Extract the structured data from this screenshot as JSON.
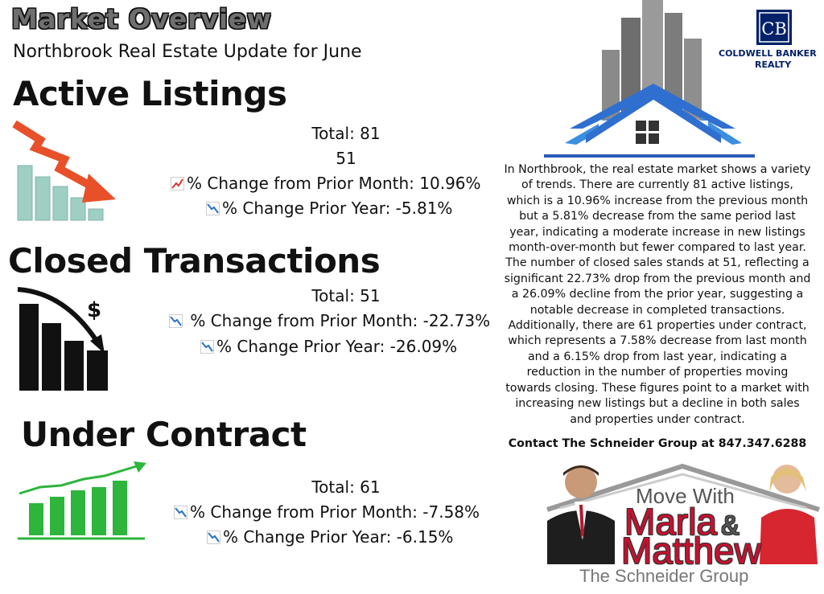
{
  "header": {
    "title": "Market Overview",
    "subtitle": "Northbrook Real Estate Update for June"
  },
  "active_listings": {
    "heading": "Active Listings",
    "total": "Total: 81",
    "extra": "51",
    "month_change": "% Change from Prior Month: 10.96%",
    "year_change": "% Change Prior Year: -5.81%",
    "month_trend_icon": "chart-increasing-icon",
    "year_trend_icon": "chart-decreasing-icon"
  },
  "closed_transactions": {
    "heading": "Closed Transactions",
    "total": "Total: 51",
    "month_change": " % Change from Prior Month: -22.73%",
    "year_change": "% Change Prior Year: -26.09%",
    "dollar_symbol": "$"
  },
  "under_contract": {
    "heading": "Under Contract",
    "total": "Total: 61",
    "month_change": "% Change from Prior Month: -7.58%",
    "year_change": "% Change Prior Year: -6.15%"
  },
  "summary": {
    "paragraph": "In Northbrook, the real estate market shows a variety of trends. There are currently 81 active listings, which is a 10.96% increase from the previous month but a 5.81% decrease from the same period last year, indicating a moderate increase in new listings month-over-month but fewer compared to last year. The number of closed sales stands at 51, reflecting a significant 22.73% drop from the previous month and a 26.09% decline from the prior year, suggesting a notable decrease in completed transactions. Additionally, there are 61 properties under contract, which represents a 7.58% decrease from last month and a 6.15% drop from last year, indicating a reduction in the number of properties moving towards closing. These figures point to a market with increasing new listings but a decline in both sales and properties under contract.",
    "contact": "Contact The Schneider Group at 847.347.6288"
  },
  "brand": {
    "logo_letters": "CB",
    "name_line1": "COLDWELL BANKER",
    "name_line2": "REALTY",
    "color": "#012169"
  },
  "team": {
    "move_with": "Move With",
    "name1": "Marla",
    "amp": "&",
    "name2": "Matthew",
    "group": "The Schneider Group"
  },
  "colors": {
    "down_arrow": "#e8502a",
    "bars_teal": "#9fcfc4",
    "growth_green": "#2db53c",
    "house_blue": "#2f6fd0"
  }
}
